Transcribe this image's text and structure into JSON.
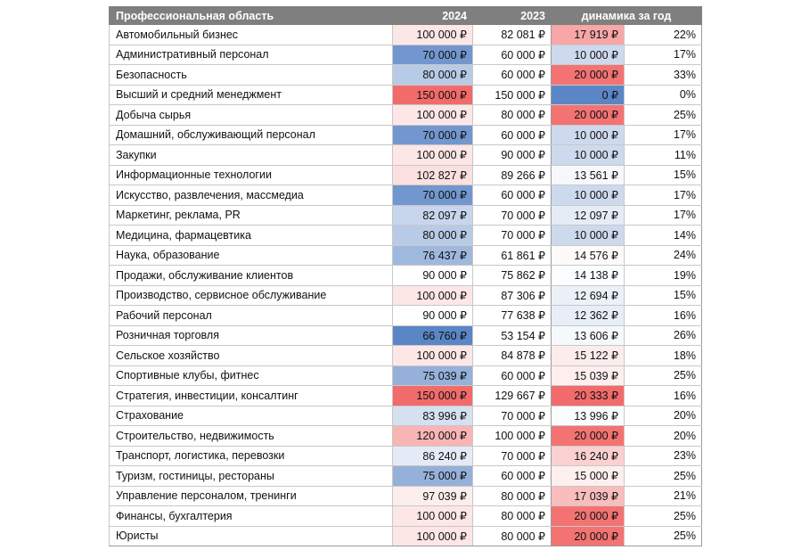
{
  "chart_data": {
    "type": "table",
    "headers": {
      "area": "Профессиональная область",
      "y2024": "2024",
      "y2023": "2023",
      "change": "динамика за год"
    },
    "colors": {
      "min_color": "#5b86c6",
      "mid_color": "#ffffff",
      "max_color": "#f26b6b",
      "header_bg": "#7f7f7f"
    },
    "rows": [
      {
        "area": "Автомобильный бизнес",
        "v2024": 100000,
        "v2023": 82081,
        "change": 17919,
        "pct": 22,
        "v2024_text": "100 000 ₽",
        "v2023_text": "82 081 ₽",
        "change_text": "17 919 ₽",
        "pct_text": "22%"
      },
      {
        "area": "Административный персонал",
        "v2024": 70000,
        "v2023": 60000,
        "change": 10000,
        "pct": 17,
        "v2024_text": "70 000 ₽",
        "v2023_text": "60 000 ₽",
        "change_text": "10 000 ₽",
        "pct_text": "17%"
      },
      {
        "area": "Безопасность",
        "v2024": 80000,
        "v2023": 60000,
        "change": 20000,
        "pct": 33,
        "v2024_text": "80 000 ₽",
        "v2023_text": "60 000 ₽",
        "change_text": "20 000 ₽",
        "pct_text": "33%"
      },
      {
        "area": "Высший и средний менеджмент",
        "v2024": 150000,
        "v2023": 150000,
        "change": 0,
        "pct": 0,
        "v2024_text": "150 000 ₽",
        "v2023_text": "150 000 ₽",
        "change_text": "0 ₽",
        "pct_text": "0%"
      },
      {
        "area": "Добыча сырья",
        "v2024": 100000,
        "v2023": 80000,
        "change": 20000,
        "pct": 25,
        "v2024_text": "100 000 ₽",
        "v2023_text": "80 000 ₽",
        "change_text": "20 000 ₽",
        "pct_text": "25%"
      },
      {
        "area": "Домашний, обслуживающий персонал",
        "v2024": 70000,
        "v2023": 60000,
        "change": 10000,
        "pct": 17,
        "v2024_text": "70 000 ₽",
        "v2023_text": "60 000 ₽",
        "change_text": "10 000 ₽",
        "pct_text": "17%"
      },
      {
        "area": "Закупки",
        "v2024": 100000,
        "v2023": 90000,
        "change": 10000,
        "pct": 11,
        "v2024_text": "100 000 ₽",
        "v2023_text": "90 000 ₽",
        "change_text": "10 000 ₽",
        "pct_text": "11%"
      },
      {
        "area": "Информационные технологии",
        "v2024": 102827,
        "v2023": 89266,
        "change": 13561,
        "pct": 15,
        "v2024_text": "102 827 ₽",
        "v2023_text": "89 266 ₽",
        "change_text": "13 561 ₽",
        "pct_text": "15%"
      },
      {
        "area": "Искусство, развлечения, массмедиа",
        "v2024": 70000,
        "v2023": 60000,
        "change": 10000,
        "pct": 17,
        "v2024_text": "70 000 ₽",
        "v2023_text": "60 000 ₽",
        "change_text": "10 000 ₽",
        "pct_text": "17%"
      },
      {
        "area": "Маркетинг, реклама, PR",
        "v2024": 82097,
        "v2023": 70000,
        "change": 12097,
        "pct": 17,
        "v2024_text": "82 097 ₽",
        "v2023_text": "70 000 ₽",
        "change_text": "12 097 ₽",
        "pct_text": "17%"
      },
      {
        "area": "Медицина, фармацевтика",
        "v2024": 80000,
        "v2023": 70000,
        "change": 10000,
        "pct": 14,
        "v2024_text": "80 000 ₽",
        "v2023_text": "70 000 ₽",
        "change_text": "10 000 ₽",
        "pct_text": "14%"
      },
      {
        "area": "Наука, образование",
        "v2024": 76437,
        "v2023": 61861,
        "change": 14576,
        "pct": 24,
        "v2024_text": "76 437 ₽",
        "v2023_text": "61 861 ₽",
        "change_text": "14 576 ₽",
        "pct_text": "24%"
      },
      {
        "area": "Продажи, обслуживание клиентов",
        "v2024": 90000,
        "v2023": 75862,
        "change": 14138,
        "pct": 19,
        "v2024_text": "90 000 ₽",
        "v2023_text": "75 862 ₽",
        "change_text": "14 138 ₽",
        "pct_text": "19%"
      },
      {
        "area": "Производство, сервисное обслуживание",
        "v2024": 100000,
        "v2023": 87306,
        "change": 12694,
        "pct": 15,
        "v2024_text": "100 000 ₽",
        "v2023_text": "87 306 ₽",
        "change_text": "12 694 ₽",
        "pct_text": "15%"
      },
      {
        "area": "Рабочий персонал",
        "v2024": 90000,
        "v2023": 77638,
        "change": 12362,
        "pct": 16,
        "v2024_text": "90 000 ₽",
        "v2023_text": "77 638 ₽",
        "change_text": "12 362 ₽",
        "pct_text": "16%"
      },
      {
        "area": "Розничная торговля",
        "v2024": 66760,
        "v2023": 53154,
        "change": 13606,
        "pct": 26,
        "v2024_text": "66 760 ₽",
        "v2023_text": "53 154 ₽",
        "change_text": "13 606 ₽",
        "pct_text": "26%"
      },
      {
        "area": "Сельское хозяйство",
        "v2024": 100000,
        "v2023": 84878,
        "change": 15122,
        "pct": 18,
        "v2024_text": "100 000 ₽",
        "v2023_text": "84 878 ₽",
        "change_text": "15 122 ₽",
        "pct_text": "18%"
      },
      {
        "area": "Спортивные клубы, фитнес",
        "v2024": 75039,
        "v2023": 60000,
        "change": 15039,
        "pct": 25,
        "v2024_text": "75 039 ₽",
        "v2023_text": "60 000 ₽",
        "change_text": "15 039 ₽",
        "pct_text": "25%"
      },
      {
        "area": "Стратегия, инвестиции, консалтинг",
        "v2024": 150000,
        "v2023": 129667,
        "change": 20333,
        "pct": 16,
        "v2024_text": "150 000 ₽",
        "v2023_text": "129 667 ₽",
        "change_text": "20 333 ₽",
        "pct_text": "16%"
      },
      {
        "area": "Страхование",
        "v2024": 83996,
        "v2023": 70000,
        "change": 13996,
        "pct": 20,
        "v2024_text": "83 996 ₽",
        "v2023_text": "70 000 ₽",
        "change_text": "13 996 ₽",
        "pct_text": "20%"
      },
      {
        "area": "Строительство, недвижимость",
        "v2024": 120000,
        "v2023": 100000,
        "change": 20000,
        "pct": 20,
        "v2024_text": "120 000 ₽",
        "v2023_text": "100 000 ₽",
        "change_text": "20 000 ₽",
        "pct_text": "20%"
      },
      {
        "area": "Транспорт, логистика, перевозки",
        "v2024": 86240,
        "v2023": 70000,
        "change": 16240,
        "pct": 23,
        "v2024_text": "86 240 ₽",
        "v2023_text": "70 000 ₽",
        "change_text": "16 240 ₽",
        "pct_text": "23%"
      },
      {
        "area": "Туризм, гостиницы, рестораны",
        "v2024": 75000,
        "v2023": 60000,
        "change": 15000,
        "pct": 25,
        "v2024_text": "75 000 ₽",
        "v2023_text": "60 000 ₽",
        "change_text": "15 000 ₽",
        "pct_text": "25%"
      },
      {
        "area": "Управление персоналом, тренинги",
        "v2024": 97039,
        "v2023": 80000,
        "change": 17039,
        "pct": 21,
        "v2024_text": "97 039 ₽",
        "v2023_text": "80 000 ₽",
        "change_text": "17 039 ₽",
        "pct_text": "21%"
      },
      {
        "area": "Финансы, бухгалтерия",
        "v2024": 100000,
        "v2023": 80000,
        "change": 20000,
        "pct": 25,
        "v2024_text": "100 000 ₽",
        "v2023_text": "80 000 ₽",
        "change_text": "20 000 ₽",
        "pct_text": "25%"
      },
      {
        "area": "Юристы",
        "v2024": 100000,
        "v2023": 80000,
        "change": 20000,
        "pct": 25,
        "v2024_text": "100 000 ₽",
        "v2023_text": "80 000 ₽",
        "change_text": "20 000 ₽",
        "pct_text": "25%"
      }
    ]
  }
}
